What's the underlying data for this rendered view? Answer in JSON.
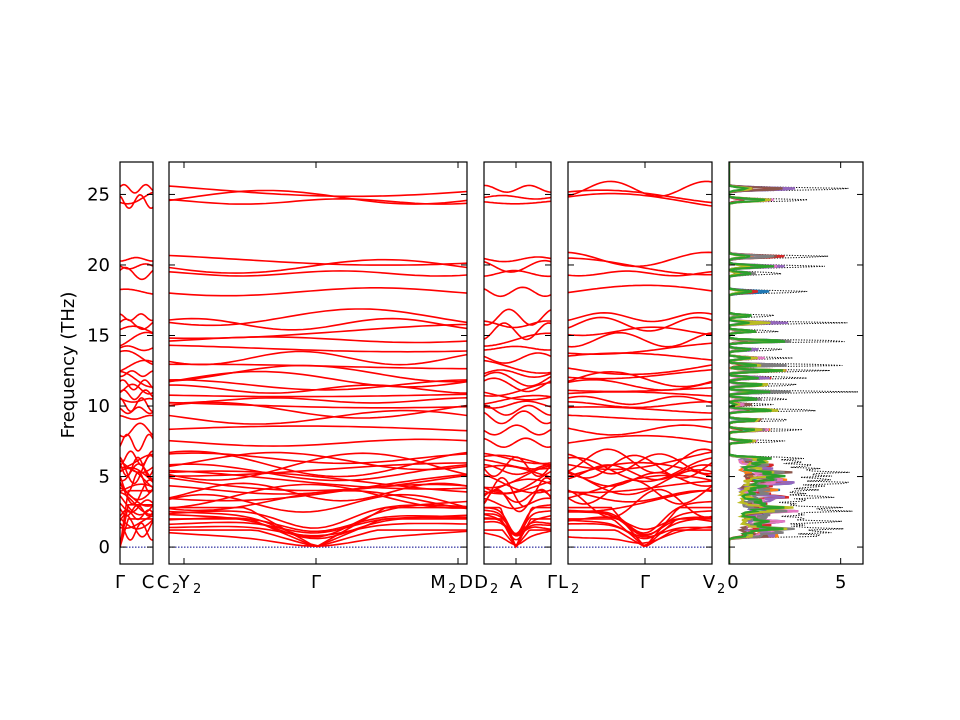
{
  "chart_data": {
    "type": "line",
    "title": "",
    "ylabel": "Frequency (THz)",
    "ylim": [
      -1.2,
      27.3
    ],
    "yticks": [
      "0",
      "5",
      "10",
      "15",
      "20",
      "25"
    ],
    "ytick_values": [
      0,
      5,
      10,
      15,
      20,
      25
    ],
    "band_color": "#ff0000",
    "zero_line_color": "#00008b",
    "band_segments": [
      {
        "start_label": "Γ",
        "end_label": "C"
      },
      {
        "start_label": "C2",
        "mid_label": "Y2",
        "center_label": "Γ",
        "pre_end_label": "M2",
        "end_label": "D"
      },
      {
        "start_label": "D2",
        "center_label": "A",
        "end_label": "Γ"
      },
      {
        "start_label": "L2",
        "center_label": "Γ",
        "end_label": "V2"
      }
    ],
    "band_tick_labels": [
      {
        "text": "Γ"
      },
      {
        "text": "C"
      },
      {
        "text": "C"
      },
      {
        "sub": "2"
      },
      {
        "text": "Y"
      },
      {
        "sub": "2"
      },
      {
        "text": "Γ"
      },
      {
        "text": "M"
      },
      {
        "sub": "2"
      },
      {
        "text": "D"
      },
      {
        "text": "D"
      },
      {
        "sub": "2"
      },
      {
        "text": "A"
      },
      {
        "text": "Γ"
      },
      {
        "text": "L"
      },
      {
        "sub": "2"
      },
      {
        "text": "Γ"
      },
      {
        "text": "V"
      },
      {
        "sub": "2"
      }
    ],
    "dos_panel": {
      "xlim": [
        0,
        6
      ],
      "xticks": [
        "0",
        "5"
      ],
      "xtick_values": [
        0,
        5
      ],
      "total_color": "#000000",
      "series_colors": [
        "#1f77b4",
        "#ff7f0e",
        "#d62728",
        "#9467bd",
        "#8c564b",
        "#e377c2",
        "#7f7f7f",
        "#bcbd22",
        "#2ca02c"
      ]
    }
  }
}
